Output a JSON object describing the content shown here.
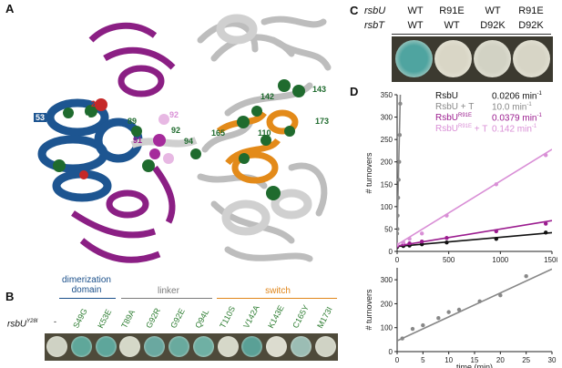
{
  "panels": {
    "A": {
      "letter": "A",
      "residues": [
        "53",
        "49",
        "28",
        "89",
        "92",
        "91",
        "92",
        "94",
        "165",
        "110",
        "142",
        "143",
        "173"
      ]
    },
    "B": {
      "letter": "B",
      "row_label": "rsbU",
      "row_label_sup": "Y28I",
      "groups": [
        {
          "name_lines": [
            "dimerization",
            "domain"
          ],
          "color": "#1a4f8a"
        },
        {
          "name_lines": [
            "linker"
          ],
          "color": "#7a7a7a"
        },
        {
          "name_lines": [
            "switch"
          ],
          "color": "#e0861a"
        }
      ],
      "mutants": [
        "-",
        "S49G",
        "K53E",
        "T89A",
        "G92R",
        "G92E",
        "Q94L",
        "T110S",
        "V142A",
        "K143E",
        "C165Y",
        "M173I"
      ],
      "spot_colors": [
        "#cfd2c4",
        "#5fa79a",
        "#5ea69b",
        "#d5d8c8",
        "#6aa8a0",
        "#69aa9e",
        "#6fb0a4",
        "#d6d8c9",
        "#5aa096",
        "#dcdccf",
        "#9bbdb4",
        "#d0d3c5"
      ]
    },
    "C": {
      "letter": "C",
      "rows": [
        {
          "label": "rsbU",
          "values": [
            "WT",
            "R91E",
            "WT",
            "R91E"
          ]
        },
        {
          "label": "rsbT",
          "values": [
            "WT",
            "WT",
            "D92K",
            "D92K"
          ]
        }
      ],
      "spot_colors": [
        "#4fa4a0",
        "#d9d6c6",
        "#d2d2c4",
        "#d7d5c6"
      ]
    },
    "D": {
      "letter": "D",
      "legend": [
        {
          "name": "RsbU",
          "sup": "",
          "rate": "0.0206 min",
          "color": "#111111"
        },
        {
          "name": "RsbU + T",
          "sup": "",
          "rate": "10.0 min",
          "color": "#888888"
        },
        {
          "name": "RsbU",
          "sup": "R91E",
          "rate": "0.0379 min",
          "color": "#9b1c8f"
        },
        {
          "name": "RsbU",
          "sup": "R91E",
          "name_suffix": " + T",
          "rate": "0.142 min",
          "color": "#d98fd6"
        }
      ],
      "rate_sup": "-1"
    }
  },
  "chart_data": [
    {
      "type": "scatter",
      "title": "",
      "xlabel": "time (min)",
      "ylabel": "# turnovers",
      "xlim": [
        0,
        1500
      ],
      "ylim": [
        0,
        350
      ],
      "xticks": [
        0,
        500,
        1000,
        1500
      ],
      "yticks": [
        0,
        50,
        100,
        150,
        200,
        250,
        300,
        350
      ],
      "series": [
        {
          "name": "RsbU",
          "color": "#111111",
          "x": [
            0,
            60,
            120,
            240,
            480,
            960,
            1440
          ],
          "y": [
            10,
            12,
            13,
            16,
            20,
            28,
            42
          ],
          "fit": {
            "slope": 0.0206,
            "intercept": 11
          }
        },
        {
          "name": "RsbU + T",
          "color": "#888888",
          "x": [
            0,
            3,
            5,
            10,
            15,
            20,
            25,
            30
          ],
          "y": [
            40,
            50,
            80,
            120,
            160,
            200,
            260,
            330
          ],
          "fit": {
            "slope": 10.0,
            "intercept": 40
          }
        },
        {
          "name": "RsbU R91E",
          "color": "#9b1c8f",
          "x": [
            0,
            60,
            120,
            240,
            480,
            960,
            1440
          ],
          "y": [
            12,
            16,
            18,
            22,
            30,
            45,
            62
          ],
          "fit": {
            "slope": 0.0379,
            "intercept": 12
          }
        },
        {
          "name": "RsbU R91E + T",
          "color": "#d98fd6",
          "x": [
            0,
            60,
            120,
            240,
            480,
            960,
            1440
          ],
          "y": [
            15,
            20,
            28,
            40,
            80,
            150,
            215
          ],
          "fit": {
            "slope": 0.142,
            "intercept": 15
          }
        }
      ]
    },
    {
      "type": "scatter",
      "title": "",
      "xlabel": "time (min)",
      "ylabel": "# turnovers",
      "xlim": [
        0,
        30
      ],
      "ylim": [
        0,
        350
      ],
      "xticks": [
        0,
        5,
        10,
        15,
        20,
        25,
        30
      ],
      "yticks": [
        0,
        100,
        200,
        300
      ],
      "series": [
        {
          "name": "RsbU + T",
          "color": "#888888",
          "x": [
            1,
            3,
            5,
            8,
            10,
            12,
            16,
            20,
            25
          ],
          "y": [
            55,
            95,
            110,
            140,
            165,
            175,
            210,
            235,
            315
          ],
          "fit": {
            "slope": 10.0,
            "intercept": 45
          }
        }
      ]
    }
  ]
}
